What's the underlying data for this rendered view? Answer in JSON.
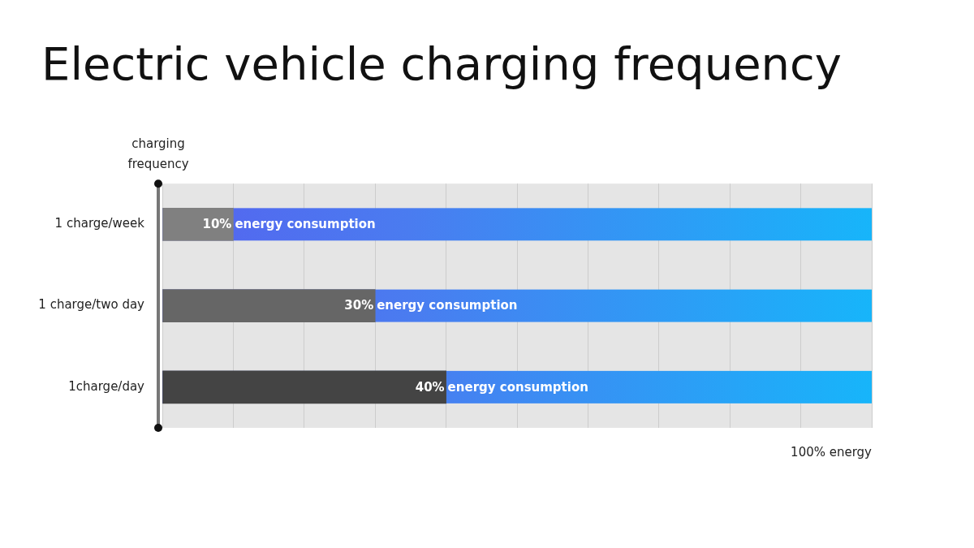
{
  "chart_data": {
    "type": "bar",
    "title": "Electric vehicle charging frequency",
    "orientation": "horizontal",
    "categories": [
      "1 charge/week",
      "1 charge/two day",
      "1charge/day"
    ],
    "values": [
      10,
      30,
      40
    ],
    "value_labels": [
      "10% energy consumption",
      "30% energy consumption",
      "40% energy consumption"
    ],
    "data_labels": true,
    "colors": [
      "#808080",
      "#666666",
      "#444444"
    ],
    "xlabel": "100% energy",
    "ylabel": "charging frequency",
    "xlim": [
      0,
      100
    ],
    "xticks": [
      0,
      10,
      20,
      30,
      40,
      50,
      60,
      70,
      80,
      90,
      100
    ],
    "grid": true,
    "tick_labels": "y"
  }
}
